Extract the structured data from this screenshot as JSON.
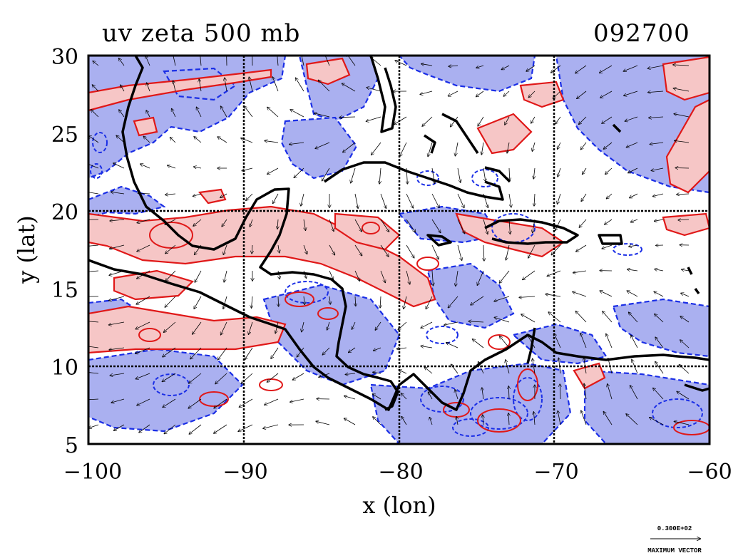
{
  "map": {
    "title": "uv zeta 500 mb",
    "timestamp": "092700",
    "xlabel": "x (lon)",
    "ylabel": "y (lat)",
    "x_ticks": [
      "−100",
      "−90",
      "−80",
      "−70",
      "−60"
    ],
    "y_ticks": [
      "30",
      "25",
      "20",
      "15",
      "10",
      "5"
    ],
    "legend": {
      "scale_value": "0.300E+02",
      "scale_label": "MAXIMUM VECTOR"
    },
    "extent": {
      "lon_min": -100,
      "lon_max": -60,
      "lat_min": 5,
      "lat_max": 30
    },
    "grid_lons": [
      -90,
      -80,
      -70
    ],
    "grid_lats": [
      20,
      10
    ],
    "colors": {
      "negative_fill": "#aab0f0",
      "negative_contour": "#1a2ee6",
      "positive_fill": "#f6c6c6",
      "positive_contour": "#e01818",
      "coastline": "#000000",
      "vector": "#000000"
    }
  }
}
